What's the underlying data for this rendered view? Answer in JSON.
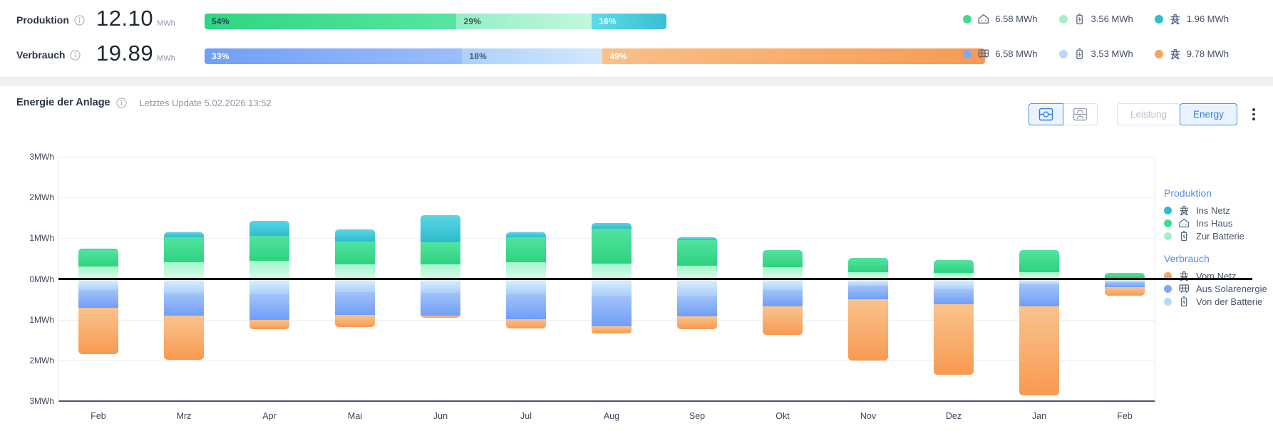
{
  "summary": {
    "production": {
      "label": "Produktion",
      "value": "12.10",
      "unit": "MWh",
      "segments": [
        {
          "name": "ins-haus",
          "pct": 54,
          "label": "54%",
          "text_color": "#274058",
          "gradient": [
            "#2fd681",
            "#58e5a2"
          ]
        },
        {
          "name": "zur-batterie",
          "pct": 29,
          "label": "29%",
          "text_color": "#3c5a4e",
          "gradient": [
            "#93f0c4",
            "#c2f7dd"
          ]
        },
        {
          "name": "ins-netz",
          "pct": 16,
          "label": "16%",
          "text_color": "#ffffff",
          "gradient": [
            "#5fd9e6",
            "#38c0d2"
          ]
        }
      ],
      "legend": [
        {
          "icon": "house-icon",
          "value": "6.58 MWh",
          "color": "#40dc8e"
        },
        {
          "icon": "battery-icon",
          "value": "3.56 MWh",
          "color": "#a5efcb"
        },
        {
          "icon": "pylon-icon",
          "value": "1.96 MWh",
          "color": "#2fbccd"
        }
      ]
    },
    "consumption": {
      "label": "Verbrauch",
      "value": "19.89",
      "unit": "MWh",
      "segments": [
        {
          "name": "aus-solarenergie",
          "pct": 33,
          "label": "33%",
          "text_color": "#ffffff",
          "gradient": [
            "#6f9ff7",
            "#9bbdfa"
          ]
        },
        {
          "name": "von-der-batterie",
          "pct": 18,
          "label": "18%",
          "text_color": "#4a5c78",
          "gradient": [
            "#abd1fa",
            "#d3e8fd"
          ]
        },
        {
          "name": "vom-netz",
          "pct": 49,
          "label": "49%",
          "text_color": "#ffffff",
          "gradient": [
            "#f9c189",
            "#f69a52"
          ]
        }
      ],
      "legend": [
        {
          "icon": "solar-panel-icon",
          "value": "6.58 MWh",
          "color": "#7fa8f8"
        },
        {
          "icon": "battery-icon",
          "value": "3.53 MWh",
          "color": "#b7d8fb"
        },
        {
          "icon": "pylon-icon",
          "value": "9.78 MWh",
          "color": "#f7a55e"
        }
      ]
    }
  },
  "panel": {
    "title": "Energie der Anlage",
    "last_update": "Letztes Update 5.02.2026 13:52",
    "view_toggle": {
      "combined": "combined-view",
      "split": "split-view"
    },
    "mode_buttons": {
      "leistung": "Leistung",
      "energy": "Energy"
    }
  },
  "chart_data": {
    "type": "bar",
    "subtype": "diverging-stacked-bar",
    "categories": [
      "Feb",
      "Mrz",
      "Apr",
      "Mai",
      "Jun",
      "Jul",
      "Aug",
      "Sep",
      "Okt",
      "Nov",
      "Dez",
      "Jan",
      "Feb"
    ],
    "y_ticks": [
      "3MWh",
      "2MWh",
      "1MWh",
      "0MWh",
      "1MWh",
      "2MWh",
      "3MWh"
    ],
    "ylim": [
      -3,
      3
    ],
    "ylabel_unit": "MWh",
    "grid": true,
    "production_series": [
      {
        "key": "ins_netz",
        "label": "Ins Netz",
        "color": "#2fbccd",
        "gradient": [
          "#59d6e4",
          "#2fbccd"
        ],
        "values": [
          0.05,
          0.13,
          0.38,
          0.29,
          0.67,
          0.13,
          0.15,
          0.07,
          0,
          0,
          0,
          0,
          0
        ]
      },
      {
        "key": "ins_haus",
        "label": "Ins Haus",
        "color": "#40dc8e",
        "gradient": [
          "#52e3a0",
          "#2ed27f"
        ],
        "values": [
          0.39,
          0.61,
          0.61,
          0.57,
          0.55,
          0.61,
          0.85,
          0.62,
          0.43,
          0.35,
          0.32,
          0.54,
          0.12
        ]
      },
      {
        "key": "zur_batterie",
        "label": "Zur Batterie",
        "color": "#a5efcb",
        "gradient": [
          "#a6f3cd",
          "#d7fbea"
        ],
        "values": [
          0.31,
          0.41,
          0.44,
          0.35,
          0.35,
          0.41,
          0.38,
          0.33,
          0.28,
          0.16,
          0.15,
          0.16,
          0.02
        ]
      }
    ],
    "consumption_series": [
      {
        "key": "von_der_batterie",
        "label": "Von der Batterie",
        "color": "#b7d8fb",
        "gradient": [
          "#dcedfd",
          "#abd0fa"
        ],
        "values": [
          0.25,
          0.33,
          0.35,
          0.29,
          0.32,
          0.35,
          0.38,
          0.38,
          0.24,
          0.14,
          0.22,
          0.1,
          0.05
        ]
      },
      {
        "key": "aus_solarenergie",
        "label": "Aus Solarenergie",
        "color": "#7fa8f8",
        "gradient": [
          "#a3c2fa",
          "#709ff7"
        ],
        "values": [
          0.43,
          0.54,
          0.63,
          0.57,
          0.55,
          0.61,
          0.76,
          0.51,
          0.41,
          0.34,
          0.37,
          0.54,
          0.13
        ]
      },
      {
        "key": "vom_netz",
        "label": "Vom Netz",
        "color": "#f7a55e",
        "gradient": [
          "#fac38c",
          "#f79a52"
        ],
        "values": [
          1.13,
          1.08,
          0.22,
          0.3,
          0.05,
          0.23,
          0.18,
          0.32,
          0.69,
          1.5,
          1.74,
          2.2,
          0.2
        ]
      }
    ],
    "legend": {
      "production": {
        "title": "Produktion",
        "items": [
          {
            "label": "Ins Netz",
            "icon": "pylon-icon",
            "color": "#2fbccd"
          },
          {
            "label": "Ins Haus",
            "icon": "house-icon",
            "color": "#40dc8e"
          },
          {
            "label": "Zur Batterie",
            "icon": "battery-icon",
            "color": "#a5efcb"
          }
        ]
      },
      "consumption": {
        "title": "Verbrauch",
        "items": [
          {
            "label": "Vom Netz",
            "icon": "pylon-icon",
            "color": "#f7a55e"
          },
          {
            "label": "Aus Solarenergie",
            "icon": "solar-panel-icon",
            "color": "#7fa8f8"
          },
          {
            "label": "Von der Batterie",
            "icon": "battery-icon",
            "color": "#b7d8fb"
          }
        ]
      },
      "position": "right"
    }
  }
}
